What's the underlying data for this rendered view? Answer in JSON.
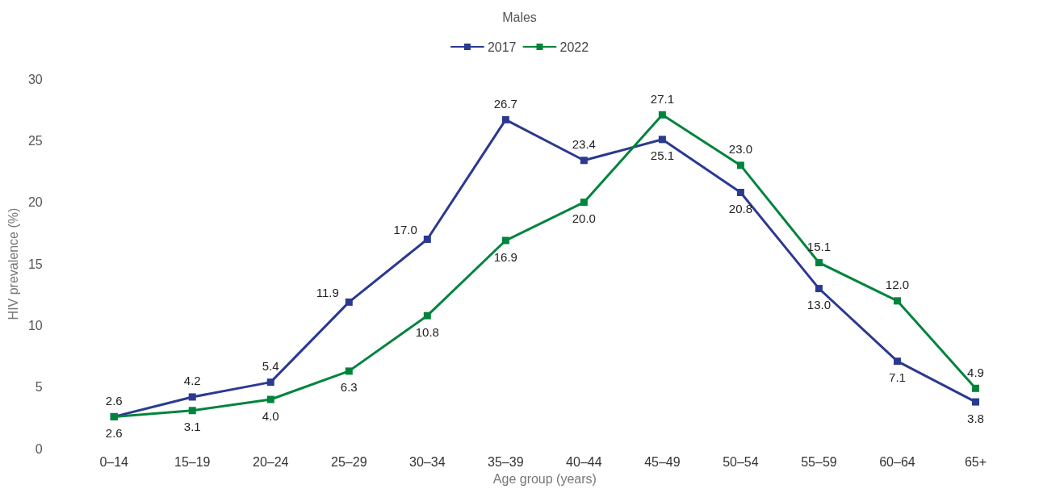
{
  "chart_data": {
    "type": "line",
    "title": "Males",
    "xlabel": "Age group (years)",
    "ylabel": "HIV prevalence (%)",
    "categories": [
      "0–14",
      "15–19",
      "20–24",
      "25–29",
      "30–34",
      "35–39",
      "40–44",
      "45–49",
      "50–54",
      "55–59",
      "60–64",
      "65+"
    ],
    "series": [
      {
        "name": "2017",
        "color": "#2b3990",
        "values": [
          2.6,
          4.2,
          5.4,
          11.9,
          17.0,
          26.7,
          23.4,
          25.1,
          20.8,
          13.0,
          7.1,
          3.8
        ],
        "value_labels": [
          "2.6",
          "4.2",
          "5.4",
          "11.9",
          "17.0",
          "26.7",
          "23.4",
          "25.1",
          "20.8",
          "13.0",
          "7.1",
          "3.8"
        ]
      },
      {
        "name": "2022",
        "color": "#00843d",
        "values": [
          2.6,
          3.1,
          4.0,
          6.3,
          10.8,
          16.9,
          20.0,
          27.1,
          23.0,
          15.1,
          12.0,
          4.9
        ],
        "value_labels": [
          "2.6",
          "3.1",
          "4.0",
          "6.3",
          "10.8",
          "16.9",
          "20.0",
          "27.1",
          "23.0",
          "15.1",
          "12.0",
          "4.9"
        ]
      }
    ],
    "ylim": [
      0,
      30
    ],
    "yticks": [
      0,
      5,
      10,
      15,
      20,
      25,
      30
    ],
    "grid": false,
    "legend": "top",
    "marker": "square",
    "line_style": "solid"
  }
}
